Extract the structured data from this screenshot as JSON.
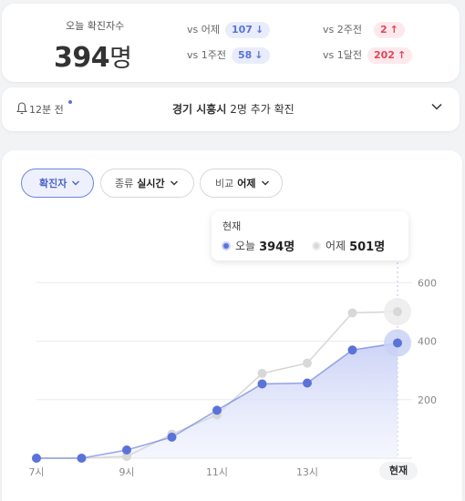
{
  "summary": {
    "label": "오늘 확진자수",
    "count": "394",
    "unit": "명",
    "comparisons": [
      {
        "label": "vs 어제",
        "value": "107",
        "direction": "down"
      },
      {
        "label": "vs 2주전",
        "value": "2",
        "direction": "up"
      },
      {
        "label": "vs 1주전",
        "value": "58",
        "direction": "down"
      },
      {
        "label": "vs 1달전",
        "value": "202",
        "direction": "up"
      }
    ]
  },
  "alert": {
    "time": "12분 전",
    "place": "경기 시흥시",
    "message": "2명 추가 확진"
  },
  "filters": {
    "metric": "확진자",
    "type_label": "종류",
    "type_value": "실시간",
    "compare_label": "비교",
    "compare_value": "어제"
  },
  "tooltip": {
    "title": "현재",
    "today_label": "오늘",
    "today_value": "394명",
    "yesterday_label": "어제",
    "yesterday_value": "501명"
  },
  "colors": {
    "today": "#5a73d8",
    "yesterday": "#d9d9d9",
    "up": "#e2455b",
    "down": "#5a73d8"
  },
  "chart_data": {
    "type": "line",
    "x": [
      7,
      8,
      9,
      10,
      11,
      12,
      13,
      14,
      15
    ],
    "x_tick_labels": [
      "7시",
      "9시",
      "11시",
      "13시"
    ],
    "current_label": "현재",
    "series": [
      {
        "name": "오늘",
        "values": [
          0,
          0,
          28,
          72,
          164,
          254,
          257,
          370,
          394
        ]
      },
      {
        "name": "어제",
        "values": [
          0,
          0,
          6,
          82,
          148,
          290,
          325,
          497,
          501
        ]
      }
    ],
    "y_ticks": [
      200,
      400,
      600
    ],
    "ylim": [
      0,
      620
    ]
  }
}
